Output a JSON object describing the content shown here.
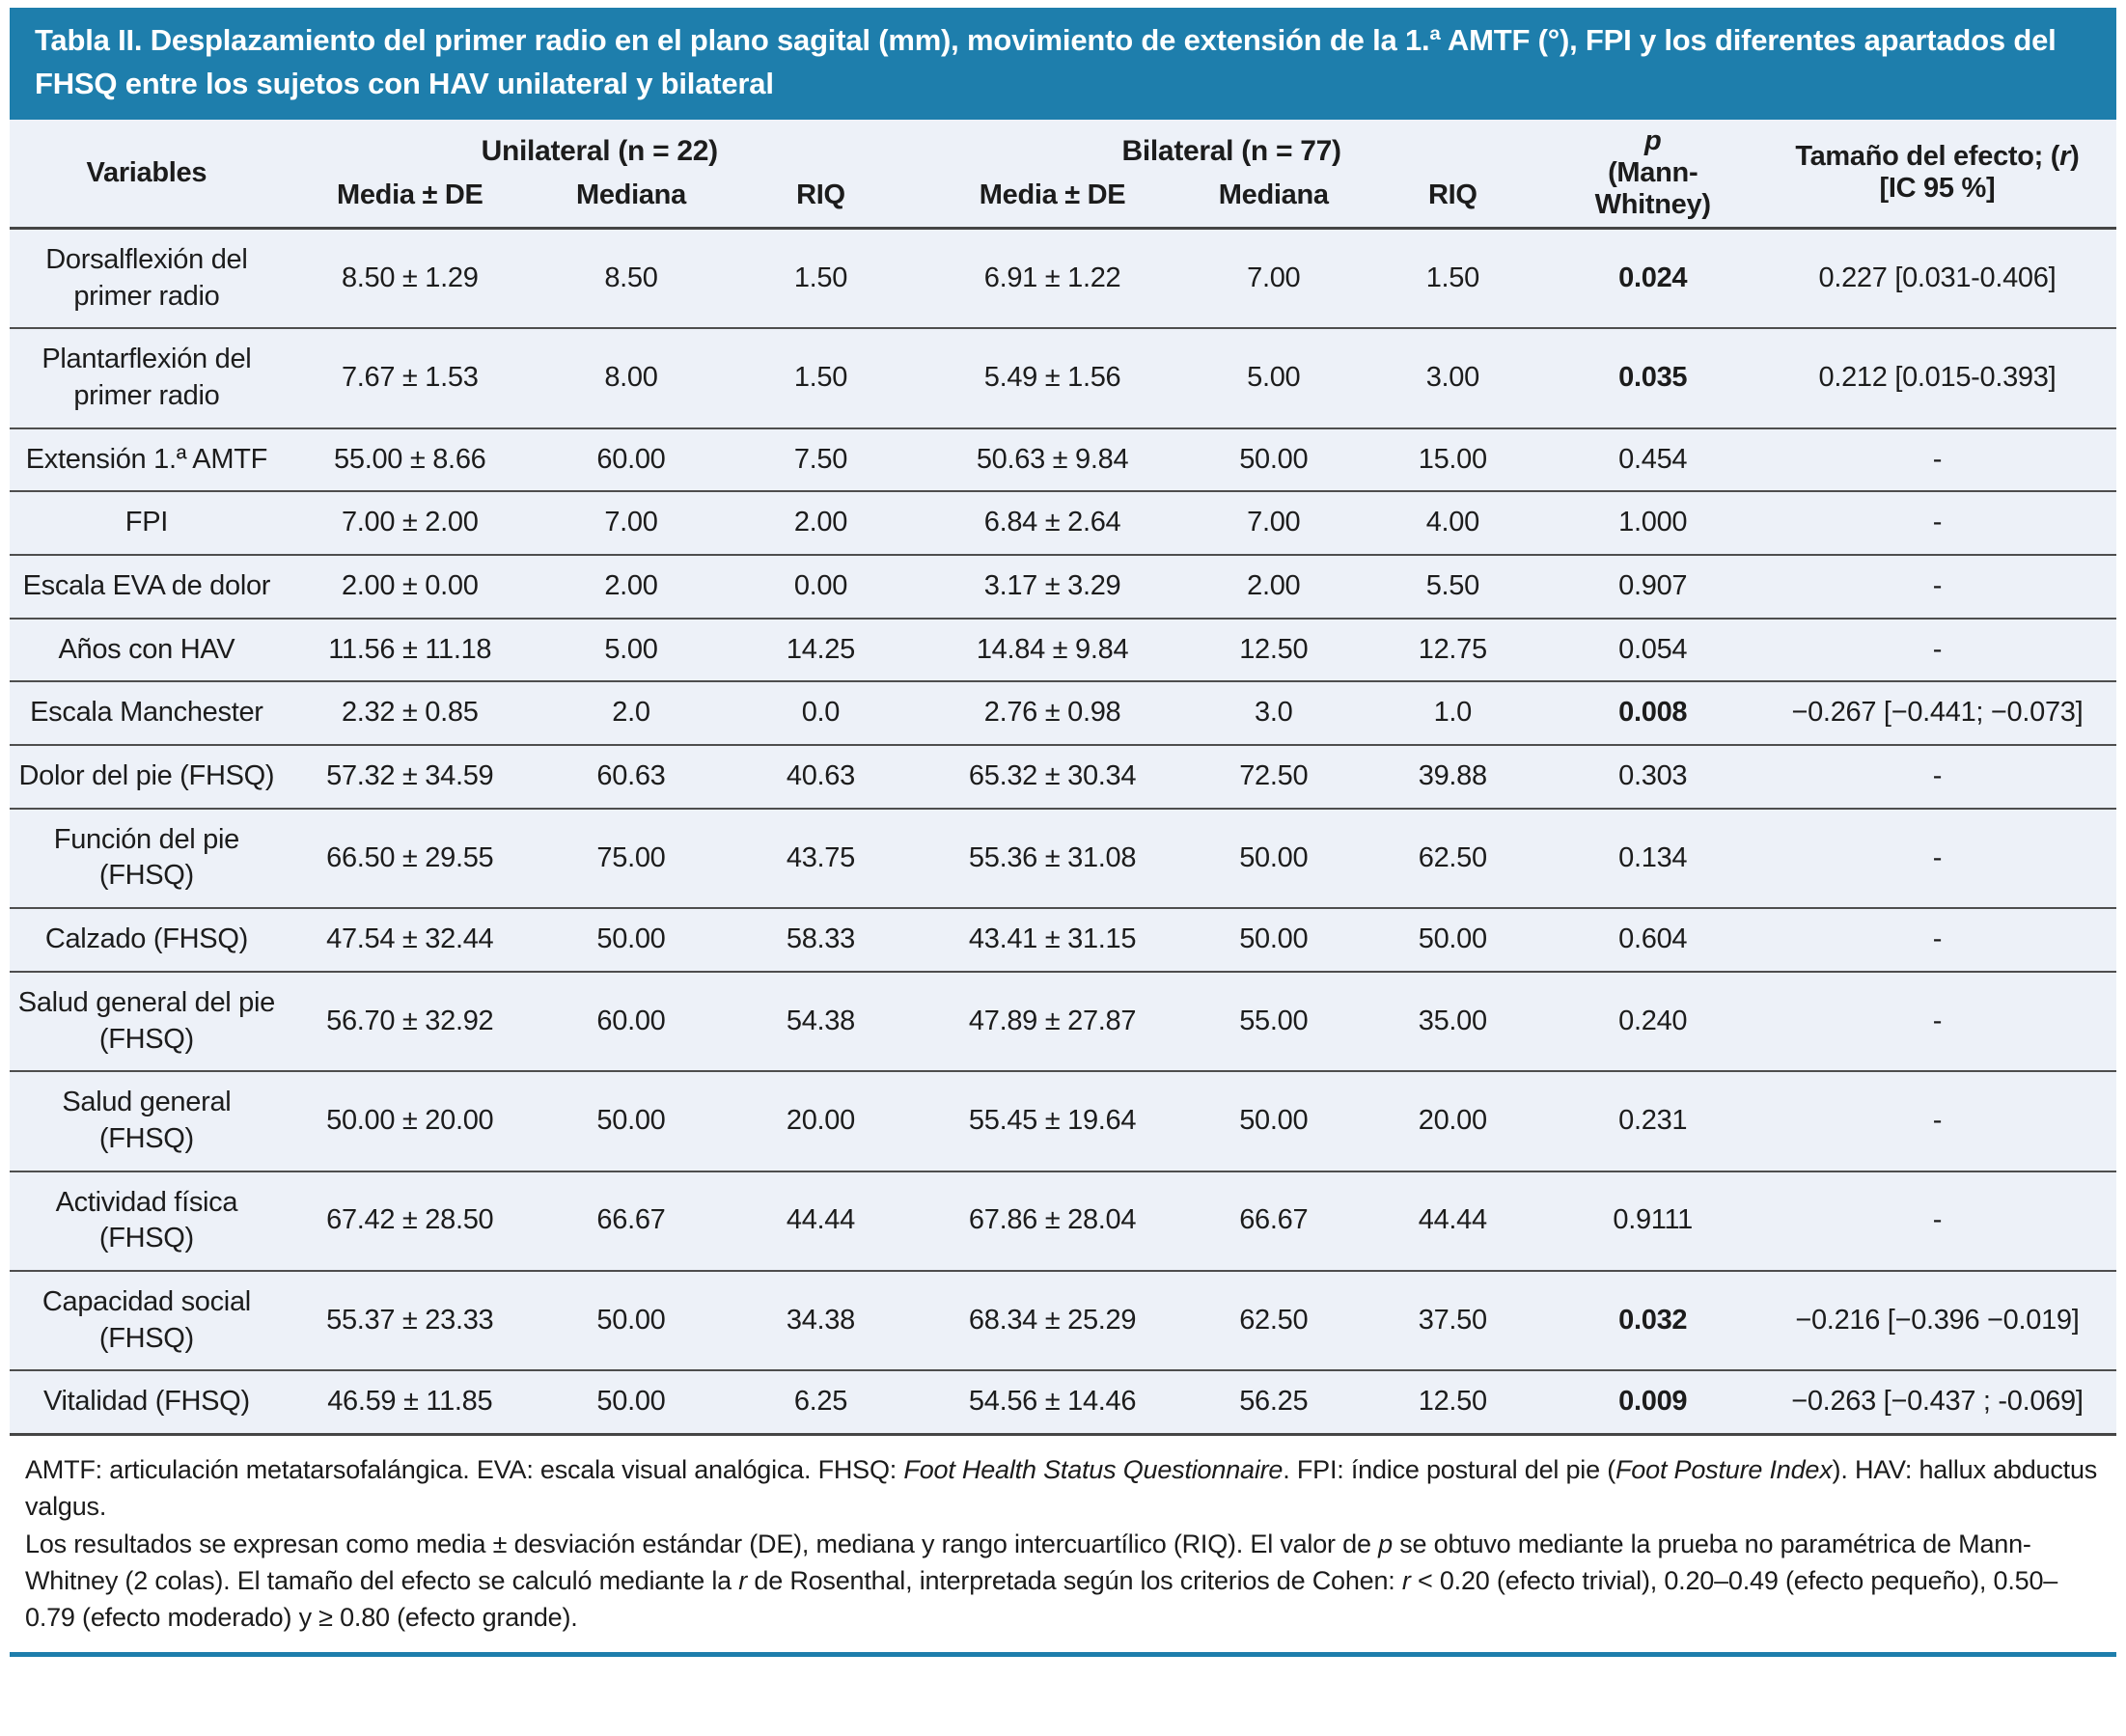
{
  "title": "Tabla II. Desplazamiento del primer radio en el plano sagital (mm), movimiento de extensión de la 1.ª AMTF (°), FPI y los diferentes apartados del FHSQ entre los sujetos con HAV unilateral y bilateral",
  "colors": {
    "header_blue": "#1e7eac",
    "table_background": "#edf1f8",
    "row_border": "#4e4e4e"
  },
  "table": {
    "header": {
      "variables": "Variables",
      "unilateral": "Unilateral (n = 22)",
      "bilateral": "Bilateral (n = 77)",
      "media": "Media ± DE",
      "mediana": "Mediana",
      "riq": "RIQ",
      "p_symbol": "p",
      "p_test": "(Mann-Whitney)",
      "effect_pre": "Tamaño del efecto; (",
      "effect_r": "r",
      "effect_post": ")",
      "effect_ci": "[IC 95 %]"
    },
    "rows": [
      {
        "variable": "Dorsalflexión del primer radio",
        "uni_media": "8.50 ± 1.29",
        "uni_mediana": "8.50",
        "uni_riq": "1.50",
        "bil_media": "6.91 ± 1.22",
        "bil_mediana": "7.00",
        "bil_riq": "1.50",
        "p": "0.024",
        "p_bold": true,
        "effect": "0.227 [0.031-0.406]"
      },
      {
        "variable": "Plantarflexión del primer radio",
        "uni_media": "7.67 ± 1.53",
        "uni_mediana": "8.00",
        "uni_riq": "1.50",
        "bil_media": "5.49 ± 1.56",
        "bil_mediana": "5.00",
        "bil_riq": "3.00",
        "p": "0.035",
        "p_bold": true,
        "effect": "0.212 [0.015-0.393]"
      },
      {
        "variable": "Extensión 1.ª AMTF",
        "uni_media": "55.00 ± 8.66",
        "uni_mediana": "60.00",
        "uni_riq": "7.50",
        "bil_media": "50.63 ± 9.84",
        "bil_mediana": "50.00",
        "bil_riq": "15.00",
        "p": "0.454",
        "p_bold": false,
        "effect": "-"
      },
      {
        "variable": "FPI",
        "uni_media": "7.00 ± 2.00",
        "uni_mediana": "7.00",
        "uni_riq": "2.00",
        "bil_media": "6.84 ± 2.64",
        "bil_mediana": "7.00",
        "bil_riq": "4.00",
        "p": "1.000",
        "p_bold": false,
        "effect": "-"
      },
      {
        "variable": "Escala EVA de dolor",
        "uni_media": "2.00 ± 0.00",
        "uni_mediana": "2.00",
        "uni_riq": "0.00",
        "bil_media": "3.17 ± 3.29",
        "bil_mediana": "2.00",
        "bil_riq": "5.50",
        "p": "0.907",
        "p_bold": false,
        "effect": "-"
      },
      {
        "variable": "Años con HAV",
        "uni_media": "11.56 ± 11.18",
        "uni_mediana": "5.00",
        "uni_riq": "14.25",
        "bil_media": "14.84 ± 9.84",
        "bil_mediana": "12.50",
        "bil_riq": "12.75",
        "p": "0.054",
        "p_bold": false,
        "effect": "-"
      },
      {
        "variable": "Escala Manchester",
        "uni_media": "2.32 ± 0.85",
        "uni_mediana": "2.0",
        "uni_riq": "0.0",
        "bil_media": "2.76 ± 0.98",
        "bil_mediana": "3.0",
        "bil_riq": "1.0",
        "p": "0.008",
        "p_bold": true,
        "effect": "−0.267 [−0.441; −0.073]"
      },
      {
        "variable": "Dolor del pie (FHSQ)",
        "uni_media": "57.32 ± 34.59",
        "uni_mediana": "60.63",
        "uni_riq": "40.63",
        "bil_media": "65.32 ± 30.34",
        "bil_mediana": "72.50",
        "bil_riq": "39.88",
        "p": "0.303",
        "p_bold": false,
        "effect": "-"
      },
      {
        "variable": "Función del pie (FHSQ)",
        "uni_media": "66.50 ± 29.55",
        "uni_mediana": "75.00",
        "uni_riq": "43.75",
        "bil_media": "55.36 ± 31.08",
        "bil_mediana": "50.00",
        "bil_riq": "62.50",
        "p": "0.134",
        "p_bold": false,
        "effect": "-"
      },
      {
        "variable": "Calzado (FHSQ)",
        "uni_media": "47.54 ± 32.44",
        "uni_mediana": "50.00",
        "uni_riq": "58.33",
        "bil_media": "43.41 ± 31.15",
        "bil_mediana": "50.00",
        "bil_riq": "50.00",
        "p": "0.604",
        "p_bold": false,
        "effect": "-"
      },
      {
        "variable": "Salud general del pie (FHSQ)",
        "uni_media": "56.70 ± 32.92",
        "uni_mediana": "60.00",
        "uni_riq": "54.38",
        "bil_media": "47.89 ± 27.87",
        "bil_mediana": "55.00",
        "bil_riq": "35.00",
        "p": "0.240",
        "p_bold": false,
        "effect": "-"
      },
      {
        "variable": "Salud general (FHSQ)",
        "uni_media": "50.00 ± 20.00",
        "uni_mediana": "50.00",
        "uni_riq": "20.00",
        "bil_media": "55.45 ± 19.64",
        "bil_mediana": "50.00",
        "bil_riq": "20.00",
        "p": "0.231",
        "p_bold": false,
        "effect": "-"
      },
      {
        "variable": "Actividad física (FHSQ)",
        "uni_media": "67.42 ± 28.50",
        "uni_mediana": "66.67",
        "uni_riq": "44.44",
        "bil_media": "67.86 ± 28.04",
        "bil_mediana": "66.67",
        "bil_riq": "44.44",
        "p": "0.9111",
        "p_bold": false,
        "effect": "-"
      },
      {
        "variable": "Capacidad social (FHSQ)",
        "uni_media": "55.37 ± 23.33",
        "uni_mediana": "50.00",
        "uni_riq": "34.38",
        "bil_media": "68.34 ± 25.29",
        "bil_mediana": "62.50",
        "bil_riq": "37.50",
        "p": "0.032",
        "p_bold": true,
        "effect": "−0.216 [−0.396 −0.019]"
      },
      {
        "variable": "Vitalidad (FHSQ)",
        "uni_media": "46.59 ± 11.85",
        "uni_mediana": "50.00",
        "uni_riq": "6.25",
        "bil_media": "54.56 ± 14.46",
        "bil_mediana": "56.25",
        "bil_riq": "12.50",
        "p": "0.009",
        "p_bold": true,
        "effect": "−0.263 [−0.437 ; -0.069]"
      }
    ]
  },
  "footnotes": {
    "abbreviations": [
      {
        "t": "AMTF: articulación metatarsofalángica. EVA: escala visual analógica. FHSQ: "
      },
      {
        "t": "Foot Health Status Questionnaire",
        "i": true
      },
      {
        "t": ". FPI: índice postural del pie ("
      },
      {
        "t": "Foot Posture Index",
        "i": true
      },
      {
        "t": "). HAV: hallux abductus valgus."
      }
    ],
    "methods": [
      {
        "t": "Los resultados se expresan como media ± desviación estándar (DE), mediana y rango intercuartílico (RIQ). El valor de "
      },
      {
        "t": "p",
        "i": true
      },
      {
        "t": " se obtuvo mediante la prueba no paramétrica de Mann-Whitney (2 colas). El tamaño del efecto se calculó mediante la "
      },
      {
        "t": "r",
        "i": true
      },
      {
        "t": " de Rosenthal, interpretada según los criterios de Cohen: "
      },
      {
        "t": "r",
        "i": true
      },
      {
        "t": " < 0.20 (efecto trivial), 0.20–0.49 (efecto pequeño), 0.50–0.79 (efecto moderado) y ≥ 0.80 (efecto grande)."
      }
    ]
  }
}
